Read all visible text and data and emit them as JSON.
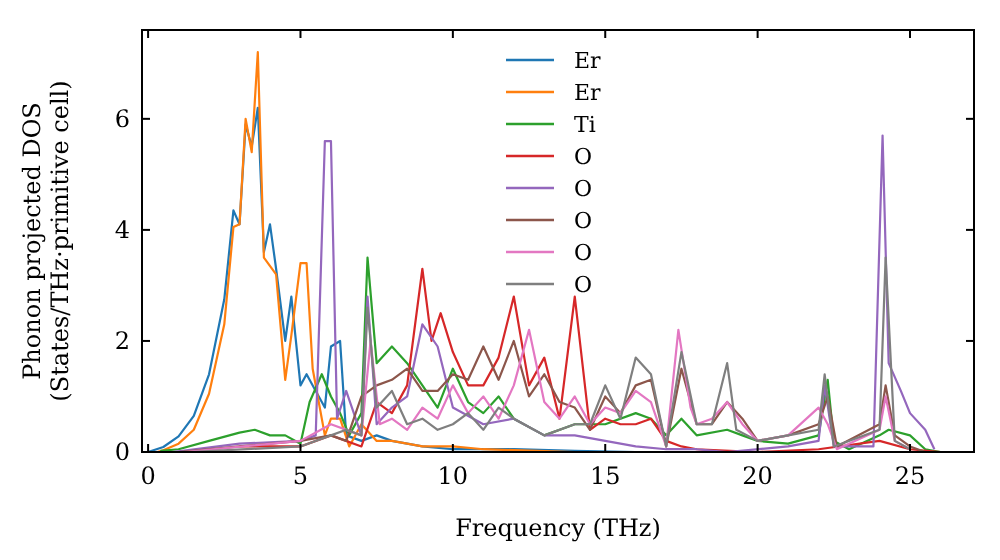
{
  "chart_data": {
    "type": "line",
    "xlabel": "Frequency (THz)",
    "ylabel": "Phonon projected DOS\n(States/THz·primitive cell)",
    "xlim": [
      -0.2,
      27.1
    ],
    "ylim": [
      0,
      7.6
    ],
    "xticks": [
      0,
      5,
      10,
      15,
      20,
      25
    ],
    "yticks": [
      0,
      2,
      4,
      6
    ],
    "legend": "top",
    "grid": false,
    "series": [
      {
        "name": "Er",
        "color": "#1f77b4",
        "x": [
          0,
          0.5,
          1,
          1.5,
          2,
          2.5,
          2.8,
          3,
          3.2,
          3.4,
          3.6,
          3.8,
          4,
          4.2,
          4.5,
          4.7,
          5,
          5.2,
          5.5,
          5.8,
          6,
          6.3,
          6.5,
          7,
          7.5,
          8,
          9,
          10,
          11,
          12,
          14,
          16,
          20,
          26
        ],
        "values": [
          0,
          0.09,
          0.28,
          0.65,
          1.4,
          2.75,
          4.35,
          4.1,
          5.9,
          5.5,
          6.2,
          3.6,
          4.1,
          3.3,
          2,
          2.8,
          1.2,
          1.4,
          1.1,
          0.8,
          1.9,
          2,
          0.3,
          0.2,
          0.3,
          0.2,
          0.1,
          0.05,
          0.05,
          0.05,
          0.02,
          0,
          0,
          0
        ]
      },
      {
        "name": "Er",
        "color": "#ff7f0e",
        "x": [
          0.3,
          0.5,
          1,
          1.5,
          2,
          2.5,
          2.8,
          3,
          3.2,
          3.4,
          3.6,
          3.8,
          4.2,
          4.5,
          4.7,
          5,
          5.2,
          5.4,
          5.8,
          6,
          6.3,
          6.6,
          7,
          7.5,
          8,
          9,
          10,
          11,
          14,
          20,
          26
        ],
        "values": [
          0,
          0.03,
          0.15,
          0.4,
          1.05,
          2.3,
          4.05,
          4.1,
          6,
          5.4,
          7.2,
          3.5,
          3.2,
          1.3,
          2.1,
          3.4,
          3.4,
          1.5,
          0.3,
          0.6,
          0.6,
          0.1,
          0.5,
          0.2,
          0.2,
          0.1,
          0.1,
          0.05,
          0,
          0,
          0
        ]
      },
      {
        "name": "Ti",
        "color": "#2ca02c",
        "x": [
          0.4,
          1,
          2,
          3,
          3.5,
          4,
          4.5,
          5,
          5.3,
          5.7,
          6,
          6.3,
          6.6,
          7,
          7.2,
          7.5,
          8,
          8.5,
          9,
          9.5,
          10,
          10.5,
          11,
          11.5,
          12,
          13,
          14,
          15,
          16,
          16.5,
          17,
          17.5,
          18,
          19,
          19.5,
          20,
          21,
          22,
          22.3,
          22.5,
          23,
          24,
          24.3,
          25,
          25.5,
          26
        ],
        "values": [
          0.02,
          0.05,
          0.2,
          0.35,
          0.4,
          0.3,
          0.3,
          0.15,
          0.9,
          1.4,
          1,
          0.7,
          0.3,
          0.7,
          3.5,
          1.6,
          1.9,
          1.6,
          1.2,
          0.8,
          1.5,
          0.9,
          0.7,
          1,
          0.6,
          0.3,
          0.5,
          0.5,
          0.7,
          0.6,
          0.3,
          0.6,
          0.3,
          0.4,
          0.3,
          0.2,
          0.15,
          0.3,
          1.3,
          0.2,
          0.05,
          0.3,
          0.4,
          0.3,
          0.05,
          0
        ]
      },
      {
        "name": "O",
        "color": "#d62728",
        "x": [
          3,
          5,
          6,
          7,
          7.5,
          8,
          8.5,
          9,
          9.3,
          9.6,
          10,
          10.5,
          11,
          11.5,
          12,
          12.5,
          13,
          13.5,
          14,
          14.5,
          15,
          15.5,
          16,
          16.5,
          17,
          17.5,
          18,
          20,
          22,
          24,
          25,
          26
        ],
        "values": [
          0.1,
          0.1,
          0.3,
          0.1,
          0.9,
          0.7,
          1.2,
          3.3,
          2,
          2.5,
          1.8,
          1.2,
          1.2,
          1.7,
          2.8,
          1.2,
          1.7,
          0.6,
          2.8,
          0.4,
          0.6,
          0.5,
          0.5,
          0.6,
          0.2,
          0.1,
          0.05,
          0,
          0.05,
          0.2,
          0.05,
          0
        ]
      },
      {
        "name": "O",
        "color": "#9467bd",
        "x": [
          0.8,
          3,
          5,
          5.5,
          5.8,
          6,
          6.2,
          6.5,
          7,
          7.2,
          7.5,
          8,
          8.5,
          9,
          9.5,
          10,
          11,
          12,
          13,
          14,
          15,
          16,
          17,
          18,
          19,
          21,
          22,
          22.2,
          22.5,
          23.8,
          24.1,
          24.3,
          24.7,
          25,
          25.5,
          25.8
        ],
        "values": [
          0,
          0.15,
          0.2,
          0.3,
          5.6,
          5.6,
          0.6,
          1.1,
          0.3,
          2.8,
          0.5,
          0.8,
          1,
          2.3,
          1.9,
          0.8,
          0.5,
          0.6,
          0.3,
          0.3,
          0.2,
          0.1,
          0.05,
          0.05,
          0,
          0.1,
          0.2,
          1.2,
          0.1,
          0.1,
          5.7,
          1.6,
          1.1,
          0.7,
          0.4,
          0.05
        ]
      },
      {
        "name": "O",
        "color": "#8c564b",
        "x": [
          1,
          3,
          5,
          6,
          6.5,
          7,
          7.5,
          8,
          8.5,
          9,
          9.5,
          10,
          10.5,
          11,
          11.5,
          12,
          12.5,
          13,
          13.5,
          14,
          14.5,
          15,
          15.5,
          16,
          16.5,
          17,
          17.5,
          18,
          18.5,
          19,
          19.5,
          20,
          21,
          22,
          22.3,
          22.6,
          24,
          24.2,
          24.5,
          25,
          25.5
        ],
        "values": [
          0,
          0.1,
          0.2,
          0.3,
          0.2,
          1,
          1.2,
          1.3,
          1.5,
          1.1,
          1.1,
          1.4,
          1.3,
          1.9,
          1.3,
          2,
          1,
          1.4,
          0.9,
          0.8,
          0.4,
          1,
          0.7,
          1.2,
          1.3,
          0.1,
          1.5,
          0.5,
          0.5,
          0.9,
          0.6,
          0.2,
          0.3,
          0.5,
          1,
          0.1,
          0.5,
          1.2,
          0.3,
          0.1,
          0
        ]
      },
      {
        "name": "O",
        "color": "#e377c2",
        "x": [
          1.2,
          5,
          6,
          7,
          7.3,
          7.6,
          8,
          8.5,
          9,
          9.5,
          10,
          10.5,
          11,
          11.5,
          12,
          12.5,
          13,
          13.5,
          14,
          14.5,
          15,
          15.5,
          16,
          16.5,
          17,
          17.4,
          17.8,
          18,
          18.5,
          19,
          19.5,
          20,
          21,
          22,
          22.3,
          22.6,
          24,
          24.2,
          24.5,
          25
        ],
        "values": [
          0,
          0.2,
          0.5,
          0.3,
          2,
          0.5,
          0.6,
          0.4,
          0.8,
          0.6,
          1.2,
          0.7,
          1,
          0.6,
          1.2,
          2.2,
          0.9,
          0.6,
          1,
          0.5,
          0.8,
          0.7,
          1.1,
          0.9,
          0.1,
          2.2,
          0.8,
          0.5,
          0.6,
          0.9,
          0.5,
          0.2,
          0.3,
          0.8,
          0.5,
          0.05,
          0.4,
          1,
          0.2,
          0.05
        ]
      },
      {
        "name": "O",
        "color": "#7f7f7f",
        "x": [
          1.4,
          5,
          6,
          6.5,
          7,
          7.2,
          7.5,
          8,
          8.5,
          9,
          9.5,
          10,
          10.5,
          11,
          11.5,
          12,
          13,
          14,
          14.5,
          15,
          15.5,
          16,
          16.5,
          17,
          17.5,
          18,
          18.5,
          19,
          19.3,
          20,
          21,
          22,
          22.2,
          22.5,
          24,
          24.2,
          24.5,
          25
        ],
        "values": [
          0,
          0.1,
          0.3,
          0.4,
          0.3,
          2.6,
          0.8,
          1.1,
          0.5,
          0.6,
          0.4,
          0.5,
          0.7,
          0.4,
          0.8,
          0.6,
          0.3,
          0.5,
          0.5,
          1.2,
          0.6,
          1.7,
          1.4,
          0.1,
          1.8,
          0.5,
          0.5,
          1.6,
          0.4,
          0.2,
          0.3,
          0.4,
          1.4,
          0.1,
          0.4,
          3.5,
          0.2,
          0.05
        ]
      }
    ]
  }
}
